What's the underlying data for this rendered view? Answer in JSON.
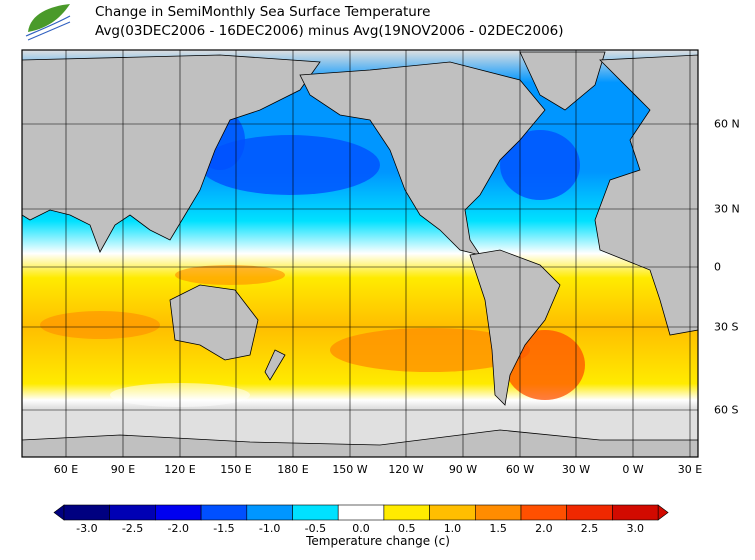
{
  "header": {
    "title_line1": "Change in SemiMonthly Sea Surface Temperature",
    "title_line2": "Avg(03DEC2006 - 16DEC2006) minus Avg(19NOV2006 - 02DEC2006)",
    "logo": "leaf-wave-logo"
  },
  "map": {
    "projection": "global, centered near 200E",
    "land_color": "#c0c0c0",
    "no_data_color": "#e0e0e0",
    "lon_labels": [
      "60 E",
      "90 E",
      "120 E",
      "150 E",
      "180 E",
      "150 W",
      "120 W",
      "90 W",
      "60 W",
      "30 W",
      "0 W",
      "30 E"
    ],
    "lat_labels": [
      "60 N",
      "30 N",
      "0",
      "30 S",
      "60 S"
    ]
  },
  "legend": {
    "title": "Temperature change  (c)",
    "ticks": [
      "-3.0",
      "-2.5",
      "-2.0",
      "-1.5",
      "-1.0",
      "-0.5",
      "0.0",
      "0.5",
      "1.0",
      "1.5",
      "2.0",
      "2.5",
      "3.0"
    ],
    "colors": [
      "#000080",
      "#0000b4",
      "#0000f0",
      "#0050ff",
      "#0096ff",
      "#00e1ff",
      "#ffffff",
      "#ffeb00",
      "#ffbe00",
      "#ff8c00",
      "#ff5000",
      "#f02800",
      "#d20a00"
    ],
    "under_color": "#000080",
    "over_color": "#d20a00"
  }
}
